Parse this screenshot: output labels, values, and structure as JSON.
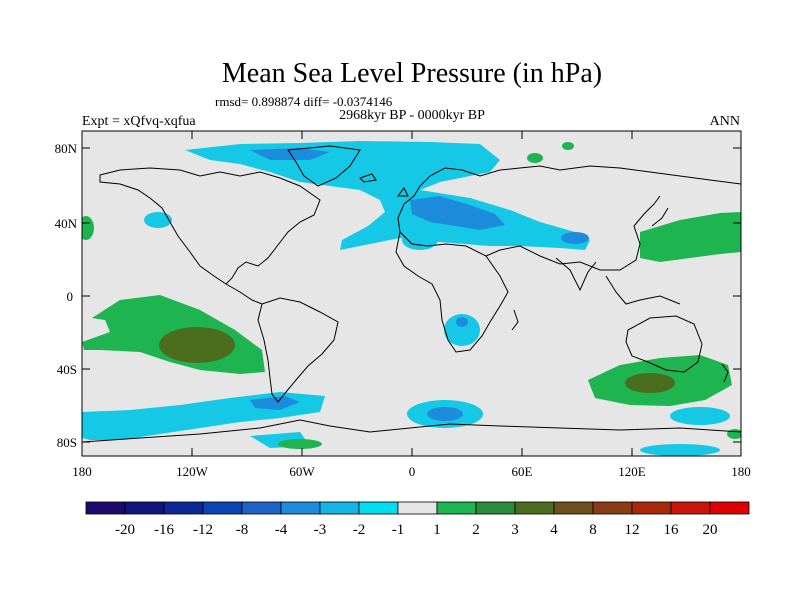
{
  "map": {
    "title": "Mean Sea Level Pressure (in hPa)",
    "stats_line": "rmsd= 0.898874 diff= -0.0374146",
    "period_label": "2968kyr BP - 0000kyr BP",
    "experiment_label": "Expt = xQfvq-xqfua",
    "season_label": "ANN",
    "background_color": "#e6e6e6",
    "lat_labels": [
      "80N",
      "40N",
      "0",
      "40S",
      "80S"
    ],
    "lon_labels": [
      "180",
      "120W",
      "60W",
      "0",
      "60E",
      "120E",
      "180"
    ]
  },
  "colorbar": {
    "colors": [
      "#1e0a6e",
      "#14147f",
      "#0a2896",
      "#0a46b4",
      "#1e64c8",
      "#1e8cdc",
      "#14b4e6",
      "#00dcf0",
      "#e6e6e6",
      "#1eb450",
      "#288c3c",
      "#4b6e1e",
      "#6e501e",
      "#8c3c14",
      "#aa280a",
      "#c8140a",
      "#dc0000"
    ],
    "labels": [
      "-20",
      "-16",
      "-12",
      "-8",
      "-4",
      "-3",
      "-2",
      "-1",
      "1",
      "2",
      "3",
      "4",
      "8",
      "12",
      "16",
      "20"
    ]
  }
}
